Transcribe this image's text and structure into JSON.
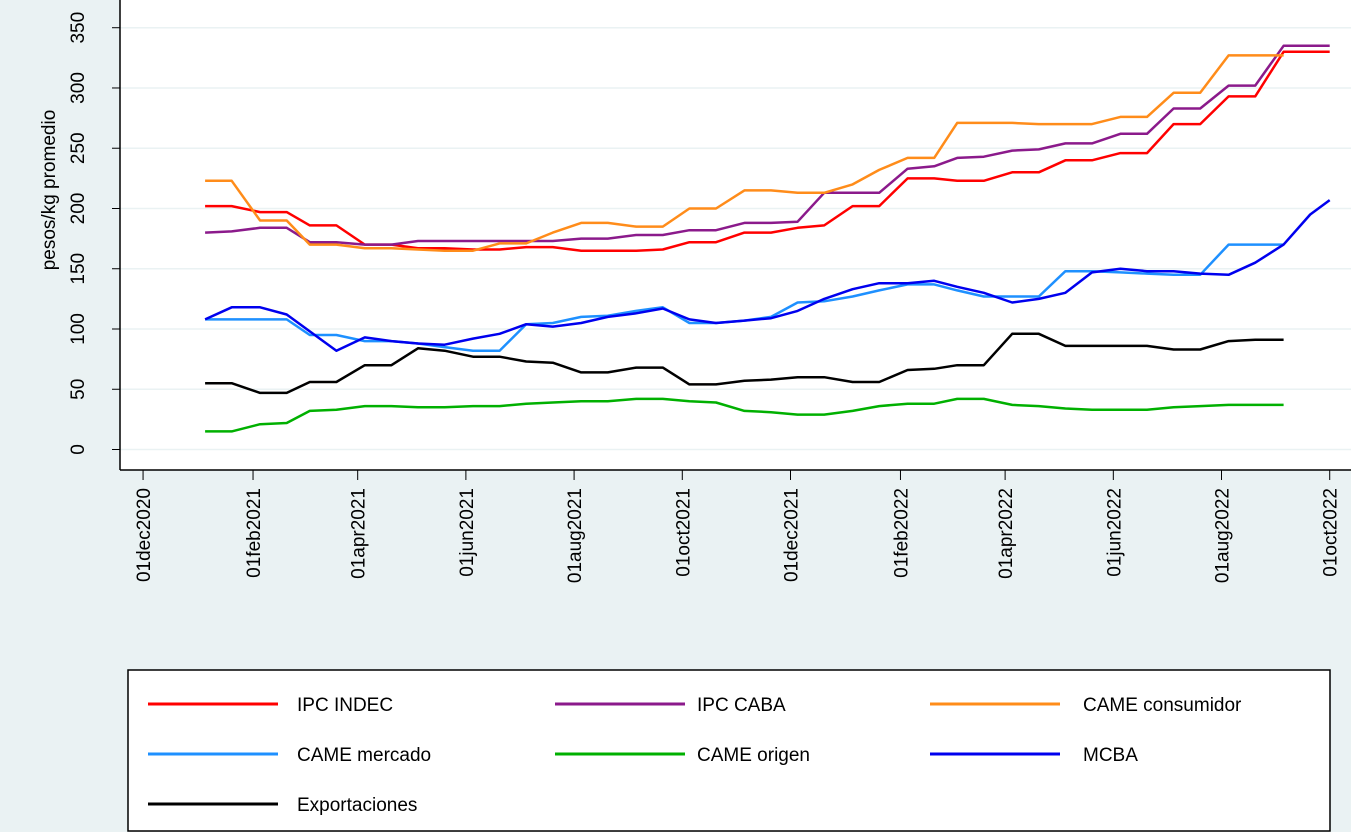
{
  "chart_data": {
    "type": "line",
    "ylabel": "pesos/kg promedio",
    "x": [
      "2021-01-05",
      "2021-01-20",
      "2021-02-05",
      "2021-02-20",
      "2021-03-05",
      "2021-03-20",
      "2021-04-05",
      "2021-04-20",
      "2021-05-05",
      "2021-05-20",
      "2021-06-05",
      "2021-06-20",
      "2021-07-05",
      "2021-07-20",
      "2021-08-05",
      "2021-08-20",
      "2021-09-05",
      "2021-09-20",
      "2021-10-05",
      "2021-10-20",
      "2021-11-05",
      "2021-11-20",
      "2021-12-05",
      "2021-12-20",
      "2022-01-05",
      "2022-01-20",
      "2022-02-05",
      "2022-02-20",
      "2022-03-05",
      "2022-03-20",
      "2022-04-05",
      "2022-04-20",
      "2022-05-05",
      "2022-05-20",
      "2022-06-05",
      "2022-06-20",
      "2022-07-05",
      "2022-07-20",
      "2022-08-05",
      "2022-08-20",
      "2022-09-05",
      "2022-09-20",
      "2022-10-01"
    ],
    "series": [
      {
        "name": "IPC INDEC",
        "color": "#ff0000",
        "values": [
          202,
          202,
          197,
          197,
          186,
          186,
          170,
          170,
          167,
          167,
          166,
          166,
          168,
          168,
          165,
          165,
          165,
          166,
          172,
          172,
          180,
          180,
          184,
          186,
          202,
          202,
          225,
          225,
          223,
          223,
          230,
          230,
          240,
          240,
          246,
          246,
          270,
          270,
          293,
          293,
          330,
          330,
          330
        ]
      },
      {
        "name": "IPC CABA",
        "color": "#8b1a8b",
        "values": [
          180,
          181,
          184,
          184,
          172,
          172,
          170,
          170,
          173,
          173,
          173,
          173,
          173,
          173,
          175,
          175,
          178,
          178,
          182,
          182,
          188,
          188,
          189,
          213,
          213,
          213,
          233,
          235,
          242,
          243,
          248,
          249,
          254,
          254,
          262,
          262,
          283,
          283,
          302,
          302,
          335,
          335,
          335
        ]
      },
      {
        "name": "CAME consumidor",
        "color": "#ff8c1a",
        "values": [
          223,
          223,
          190,
          190,
          170,
          170,
          167,
          167,
          166,
          165,
          165,
          171,
          171,
          180,
          188,
          188,
          185,
          185,
          200,
          200,
          215,
          215,
          213,
          213,
          220,
          232,
          242,
          242,
          271,
          271,
          271,
          270,
          270,
          270,
          276,
          276,
          296,
          296,
          327,
          327,
          327,
          null,
          null
        ]
      },
      {
        "name": "CAME mercado",
        "color": "#1e90ff",
        "values": [
          108,
          108,
          108,
          108,
          95,
          95,
          90,
          90,
          88,
          85,
          82,
          82,
          104,
          105,
          110,
          111,
          115,
          118,
          105,
          105,
          107,
          110,
          122,
          123,
          127,
          132,
          137,
          137,
          132,
          127,
          127,
          127,
          148,
          148,
          147,
          146,
          145,
          145,
          170,
          170,
          170,
          null,
          null
        ]
      },
      {
        "name": "CAME origen",
        "color": "#00b000",
        "values": [
          15,
          15,
          21,
          22,
          32,
          33,
          36,
          36,
          35,
          35,
          36,
          36,
          38,
          39,
          40,
          40,
          42,
          42,
          40,
          39,
          32,
          31,
          29,
          29,
          32,
          36,
          38,
          38,
          42,
          42,
          37,
          36,
          34,
          33,
          33,
          33,
          35,
          36,
          37,
          37,
          37,
          null,
          null
        ]
      },
      {
        "name": "MCBA",
        "color": "#0000ee",
        "values": [
          108,
          118,
          118,
          112,
          98,
          82,
          93,
          90,
          88,
          87,
          92,
          96,
          104,
          102,
          105,
          110,
          113,
          117,
          108,
          105,
          107,
          109,
          115,
          125,
          133,
          138,
          138,
          140,
          135,
          130,
          122,
          125,
          130,
          147,
          150,
          148,
          148,
          146,
          145,
          155,
          170,
          195,
          207
        ]
      },
      {
        "name": "Exportaciones",
        "color": "#000000",
        "values": [
          55,
          55,
          47,
          47,
          56,
          56,
          70,
          70,
          84,
          82,
          77,
          77,
          73,
          72,
          64,
          64,
          68,
          68,
          54,
          54,
          57,
          58,
          60,
          60,
          56,
          56,
          66,
          67,
          70,
          70,
          96,
          96,
          86,
          86,
          86,
          86,
          83,
          83,
          90,
          91,
          91,
          null,
          null
        ]
      }
    ],
    "xlim": [
      "2020-11-18",
      "2022-10-13"
    ],
    "xticks": [
      {
        "value": "2020-12-01",
        "label": "01dec2020"
      },
      {
        "value": "2021-02-01",
        "label": "01feb2021"
      },
      {
        "value": "2021-04-01",
        "label": "01apr2021"
      },
      {
        "value": "2021-06-01",
        "label": "01jun2021"
      },
      {
        "value": "2021-08-01",
        "label": "01aug2021"
      },
      {
        "value": "2021-10-01",
        "label": "01oct2021"
      },
      {
        "value": "2021-12-01",
        "label": "01dec2021"
      },
      {
        "value": "2022-02-01",
        "label": "01feb2022"
      },
      {
        "value": "2022-04-01",
        "label": "01apr2022"
      },
      {
        "value": "2022-06-01",
        "label": "01jun2022"
      },
      {
        "value": "2022-08-01",
        "label": "01aug2022"
      },
      {
        "value": "2022-10-01",
        "label": "01oct2022"
      }
    ],
    "ylim": [
      -17,
      373
    ],
    "yticks": [
      0,
      50,
      100,
      150,
      200,
      250,
      300,
      350
    ],
    "grid": true
  }
}
